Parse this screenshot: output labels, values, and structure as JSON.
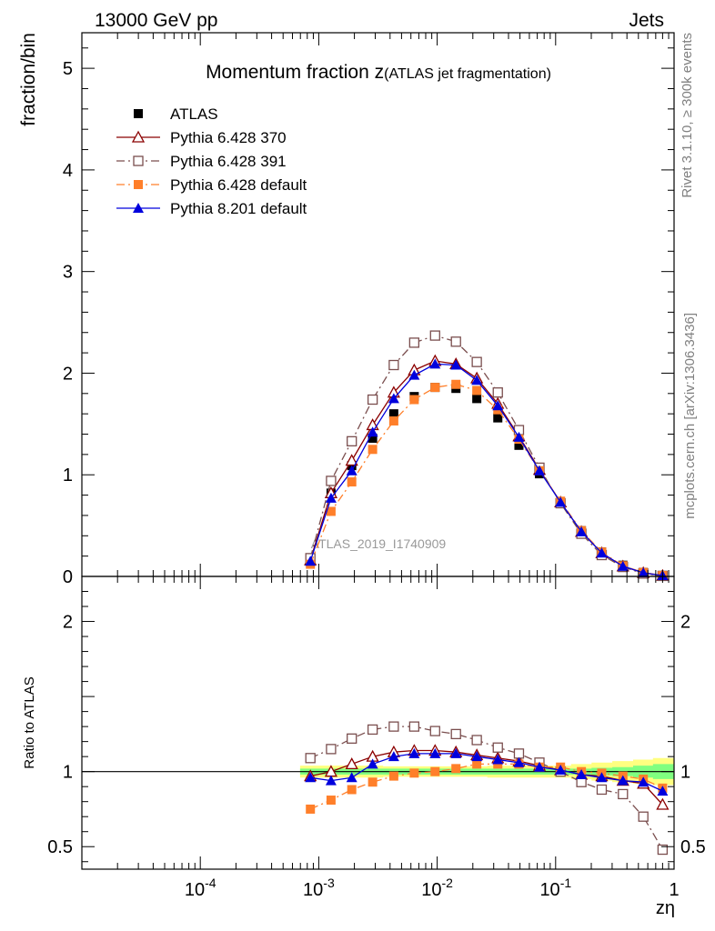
{
  "header": {
    "left": "13000 GeV pp",
    "right": "Jets"
  },
  "side_labels": {
    "rivet": "Rivet 3.1.10, ≥ 300k events",
    "mcplots": "mcplots.cern.ch [arXiv:1306.3436]"
  },
  "chart_data": [
    {
      "type": "scatter",
      "panel": "main",
      "title_main": "Momentum fraction z",
      "title_sub": "(ATLAS jet fragmentation)",
      "ylabel": "fraction/bin",
      "xlabel": "zη",
      "watermark": "ATLAS_2019_I1740909",
      "x_scale": "log",
      "xlim": [
        1e-05,
        1
      ],
      "ylim": [
        0,
        5.35
      ],
      "y_ticks": [
        "0",
        "1",
        "2",
        "3",
        "4",
        "5"
      ],
      "legend_position": "top-left",
      "x": [
        0.00085,
        0.00127,
        0.0019,
        0.00285,
        0.0043,
        0.0064,
        0.0096,
        0.0144,
        0.0216,
        0.0325,
        0.049,
        0.073,
        0.11,
        0.165,
        0.245,
        0.37,
        0.55,
        0.8
      ],
      "series": [
        {
          "name": "ATLAS",
          "color": "#000000",
          "marker": "square-filled",
          "line": "none",
          "values": [
            0.16,
            0.82,
            1.09,
            1.36,
            1.6,
            1.77,
            1.86,
            1.85,
            1.75,
            1.56,
            1.29,
            1.01,
            0.72,
            0.45,
            0.24,
            0.11,
            0.04,
            0.01
          ]
        },
        {
          "name": "Pythia 6.428 370",
          "color": "#8b0000",
          "marker": "triangle-open",
          "line": "solid",
          "values": [
            0.16,
            0.82,
            1.14,
            1.49,
            1.81,
            2.03,
            2.12,
            2.09,
            1.95,
            1.7,
            1.38,
            1.05,
            0.73,
            0.44,
            0.23,
            0.1,
            0.035,
            0.008
          ]
        },
        {
          "name": "Pythia 6.428 391",
          "color": "#7a4e4e",
          "marker": "square-open",
          "line": "dashdot",
          "values": [
            0.18,
            0.94,
            1.33,
            1.74,
            2.08,
            2.3,
            2.37,
            2.31,
            2.11,
            1.81,
            1.44,
            1.07,
            0.72,
            0.42,
            0.21,
            0.093,
            0.028,
            0.005
          ]
        },
        {
          "name": "Pythia 6.428 default",
          "color": "#ff7f2a",
          "marker": "square-filled",
          "line": "dashdot",
          "values": [
            0.12,
            0.64,
            0.93,
            1.25,
            1.53,
            1.74,
            1.86,
            1.89,
            1.83,
            1.64,
            1.35,
            1.04,
            0.74,
            0.45,
            0.24,
            0.105,
            0.039,
            0.009
          ]
        },
        {
          "name": "Pythia 8.201 default",
          "color": "#0000dd",
          "marker": "triangle-filled",
          "line": "solid",
          "values": [
            0.15,
            0.77,
            1.04,
            1.42,
            1.75,
            1.98,
            2.09,
            2.08,
            1.93,
            1.68,
            1.37,
            1.04,
            0.73,
            0.44,
            0.23,
            0.1,
            0.036,
            0.009
          ]
        }
      ]
    },
    {
      "type": "scatter",
      "panel": "ratio",
      "ylabel": "Ratio to ATLAS",
      "x_scale": "log",
      "xlim": [
        1e-05,
        1
      ],
      "x_ticks": [
        "10^-4",
        "10^-3",
        "10^-2",
        "10^-1",
        "1"
      ],
      "ylim": [
        0.35,
        2.3
      ],
      "y_ticks": [
        "0.5",
        "1",
        "2"
      ],
      "reference_line": 1,
      "band_colors": {
        "stat": "#80ff80",
        "total": "#ffff80"
      },
      "x": [
        0.00085,
        0.00127,
        0.0019,
        0.00285,
        0.0043,
        0.0064,
        0.0096,
        0.0144,
        0.0216,
        0.0325,
        0.049,
        0.073,
        0.11,
        0.165,
        0.245,
        0.37,
        0.55,
        0.8
      ],
      "band_stat_halfwidth": [
        0.02,
        0.02,
        0.02,
        0.02,
        0.02,
        0.02,
        0.02,
        0.02,
        0.02,
        0.02,
        0.02,
        0.02,
        0.02,
        0.02,
        0.025,
        0.03,
        0.04,
        0.05
      ],
      "band_total_halfwidth": [
        0.04,
        0.04,
        0.04,
        0.04,
        0.035,
        0.035,
        0.035,
        0.035,
        0.035,
        0.04,
        0.04,
        0.04,
        0.04,
        0.05,
        0.06,
        0.07,
        0.08,
        0.09
      ],
      "series": [
        {
          "name": "Pythia 6.428 370",
          "color": "#8b0000",
          "marker": "triangle-open",
          "line": "solid",
          "values": [
            0.97,
            1.0,
            1.05,
            1.1,
            1.13,
            1.14,
            1.14,
            1.13,
            1.11,
            1.09,
            1.07,
            1.04,
            1.01,
            0.98,
            0.97,
            0.94,
            0.92,
            0.78
          ]
        },
        {
          "name": "Pythia 6.428 391",
          "color": "#7a4e4e",
          "marker": "square-open",
          "line": "dashdot",
          "values": [
            1.09,
            1.15,
            1.22,
            1.28,
            1.3,
            1.3,
            1.27,
            1.25,
            1.21,
            1.16,
            1.12,
            1.06,
            1.0,
            0.93,
            0.88,
            0.85,
            0.7,
            0.48
          ]
        },
        {
          "name": "Pythia 6.428 default",
          "color": "#ff7f2a",
          "marker": "square-filled",
          "line": "dashdot",
          "values": [
            0.75,
            0.81,
            0.88,
            0.93,
            0.97,
            0.99,
            1.0,
            1.02,
            1.05,
            1.05,
            1.05,
            1.03,
            1.03,
            1.0,
            0.99,
            0.97,
            0.95,
            0.89
          ]
        },
        {
          "name": "Pythia 8.201 default",
          "color": "#0000dd",
          "marker": "triangle-filled",
          "line": "solid",
          "values": [
            0.96,
            0.94,
            0.96,
            1.05,
            1.1,
            1.12,
            1.12,
            1.12,
            1.1,
            1.08,
            1.06,
            1.03,
            1.01,
            0.98,
            0.96,
            0.94,
            0.93,
            0.87
          ]
        }
      ]
    }
  ]
}
